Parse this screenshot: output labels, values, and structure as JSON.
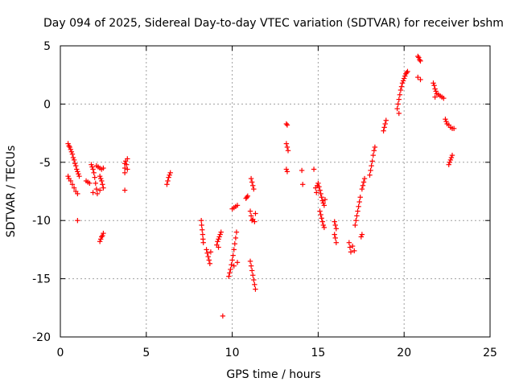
{
  "chart_data": {
    "type": "scatter",
    "title": "Day 094 of 2025, Sidereal Day-to-day VTEC variation (SDTVAR) for receiver bshm",
    "xlabel": "GPS time / hours",
    "ylabel": "SDTVAR / TECUs",
    "xlim": [
      0,
      25
    ],
    "ylim": [
      -20,
      5
    ],
    "xticks": [
      0,
      5,
      10,
      15,
      20,
      25
    ],
    "yticks": [
      -20,
      -15,
      -10,
      -5,
      0,
      5
    ],
    "grid": true,
    "marker": "+",
    "color": "#ff0000",
    "series": [
      {
        "name": "SDTVAR",
        "points": [
          [
            0.45,
            -3.4
          ],
          [
            0.5,
            -3.6
          ],
          [
            0.55,
            -3.7
          ],
          [
            0.6,
            -3.9
          ],
          [
            0.65,
            -4.1
          ],
          [
            0.7,
            -4.3
          ],
          [
            0.75,
            -4.6
          ],
          [
            0.8,
            -4.8
          ],
          [
            0.85,
            -5.1
          ],
          [
            0.9,
            -5.3
          ],
          [
            0.95,
            -5.6
          ],
          [
            1.0,
            -5.8
          ],
          [
            1.05,
            -6.0
          ],
          [
            1.1,
            -6.2
          ],
          [
            0.45,
            -6.2
          ],
          [
            0.5,
            -6.4
          ],
          [
            0.6,
            -6.6
          ],
          [
            0.7,
            -6.9
          ],
          [
            0.8,
            -7.2
          ],
          [
            0.9,
            -7.5
          ],
          [
            1.0,
            -7.7
          ],
          [
            1.0,
            -10.0
          ],
          [
            1.5,
            -6.6
          ],
          [
            1.6,
            -6.7
          ],
          [
            1.7,
            -6.8
          ],
          [
            1.8,
            -5.2
          ],
          [
            1.85,
            -5.4
          ],
          [
            1.9,
            -5.6
          ],
          [
            1.95,
            -5.9
          ],
          [
            2.0,
            -6.3
          ],
          [
            2.05,
            -6.8
          ],
          [
            2.1,
            -7.3
          ],
          [
            2.15,
            -7.7
          ],
          [
            1.9,
            -7.6
          ],
          [
            2.1,
            -5.3
          ],
          [
            2.2,
            -5.4
          ],
          [
            2.3,
            -5.5
          ],
          [
            2.4,
            -5.6
          ],
          [
            2.5,
            -5.5
          ],
          [
            2.3,
            -6.2
          ],
          [
            2.35,
            -6.4
          ],
          [
            2.4,
            -6.6
          ],
          [
            2.45,
            -6.9
          ],
          [
            2.5,
            -7.2
          ],
          [
            2.3,
            -7.4
          ],
          [
            2.3,
            -11.8
          ],
          [
            2.35,
            -11.6
          ],
          [
            2.4,
            -11.4
          ],
          [
            2.45,
            -11.3
          ],
          [
            2.5,
            -11.1
          ],
          [
            3.75,
            -5.1
          ],
          [
            3.75,
            -5.5
          ],
          [
            3.75,
            -5.9
          ],
          [
            3.8,
            -4.9
          ],
          [
            3.85,
            -5.2
          ],
          [
            3.9,
            -4.7
          ],
          [
            3.9,
            -5.6
          ],
          [
            3.75,
            -7.4
          ],
          [
            6.2,
            -6.9
          ],
          [
            6.25,
            -6.6
          ],
          [
            6.3,
            -6.3
          ],
          [
            6.35,
            -6.1
          ],
          [
            6.4,
            -5.9
          ],
          [
            8.2,
            -10.0
          ],
          [
            8.22,
            -10.4
          ],
          [
            8.25,
            -10.8
          ],
          [
            8.28,
            -11.2
          ],
          [
            8.3,
            -11.6
          ],
          [
            8.32,
            -11.9
          ],
          [
            8.5,
            -12.5
          ],
          [
            8.55,
            -12.8
          ],
          [
            8.6,
            -13.1
          ],
          [
            8.65,
            -13.4
          ],
          [
            8.7,
            -13.7
          ],
          [
            8.75,
            -12.7
          ],
          [
            9.1,
            -12.1
          ],
          [
            9.15,
            -11.8
          ],
          [
            9.2,
            -11.6
          ],
          [
            9.25,
            -11.4
          ],
          [
            9.3,
            -11.2
          ],
          [
            9.35,
            -11.0
          ],
          [
            9.2,
            -12.3
          ],
          [
            9.45,
            -18.2
          ],
          [
            9.8,
            -14.8
          ],
          [
            9.85,
            -14.5
          ],
          [
            9.9,
            -14.2
          ],
          [
            9.95,
            -13.8
          ],
          [
            10.0,
            -13.4
          ],
          [
            10.05,
            -13.0
          ],
          [
            10.1,
            -12.5
          ],
          [
            10.15,
            -12.0
          ],
          [
            10.2,
            -11.5
          ],
          [
            10.25,
            -11.0
          ],
          [
            10.3,
            -13.6
          ],
          [
            10.1,
            -13.9
          ],
          [
            10.0,
            -9.0
          ],
          [
            10.1,
            -8.9
          ],
          [
            10.2,
            -8.8
          ],
          [
            10.3,
            -8.7
          ],
          [
            10.8,
            -8.1
          ],
          [
            10.85,
            -8.0
          ],
          [
            10.9,
            -7.9
          ],
          [
            11.05,
            -13.5
          ],
          [
            11.1,
            -13.9
          ],
          [
            11.15,
            -14.3
          ],
          [
            11.2,
            -14.7
          ],
          [
            11.25,
            -15.1
          ],
          [
            11.3,
            -15.5
          ],
          [
            11.35,
            -15.9
          ],
          [
            11.05,
            -9.2
          ],
          [
            11.1,
            -9.6
          ],
          [
            11.15,
            -10.0
          ],
          [
            11.2,
            -9.9
          ],
          [
            11.3,
            -10.1
          ],
          [
            11.35,
            -9.4
          ],
          [
            11.1,
            -6.4
          ],
          [
            11.15,
            -6.7
          ],
          [
            11.2,
            -7.0
          ],
          [
            11.25,
            -7.3
          ],
          [
            13.15,
            -1.7
          ],
          [
            13.2,
            -1.8
          ],
          [
            13.15,
            -3.4
          ],
          [
            13.2,
            -3.7
          ],
          [
            13.25,
            -4.0
          ],
          [
            13.15,
            -5.6
          ],
          [
            13.2,
            -5.8
          ],
          [
            14.05,
            -5.7
          ],
          [
            14.1,
            -6.9
          ],
          [
            14.75,
            -5.6
          ],
          [
            14.85,
            -7.2
          ],
          [
            14.9,
            -7.6
          ],
          [
            14.95,
            -7.0
          ],
          [
            15.0,
            -6.8
          ],
          [
            15.05,
            -7.1
          ],
          [
            15.1,
            -7.4
          ],
          [
            15.15,
            -7.7
          ],
          [
            15.2,
            -8.0
          ],
          [
            15.25,
            -8.3
          ],
          [
            15.3,
            -8.5
          ],
          [
            15.35,
            -8.7
          ],
          [
            15.4,
            -8.2
          ],
          [
            15.1,
            -9.2
          ],
          [
            15.15,
            -9.5
          ],
          [
            15.2,
            -9.8
          ],
          [
            15.25,
            -10.1
          ],
          [
            15.3,
            -10.4
          ],
          [
            15.35,
            -10.6
          ],
          [
            15.95,
            -10.1
          ],
          [
            16.0,
            -10.4
          ],
          [
            16.05,
            -10.7
          ],
          [
            15.95,
            -11.2
          ],
          [
            16.0,
            -11.5
          ],
          [
            16.05,
            -11.9
          ],
          [
            16.8,
            -11.9
          ],
          [
            16.85,
            -12.3
          ],
          [
            16.9,
            -12.7
          ],
          [
            17.0,
            -12.2
          ],
          [
            17.1,
            -12.6
          ],
          [
            17.15,
            -10.4
          ],
          [
            17.2,
            -10.0
          ],
          [
            17.25,
            -9.6
          ],
          [
            17.3,
            -9.2
          ],
          [
            17.35,
            -8.8
          ],
          [
            17.4,
            -8.4
          ],
          [
            17.45,
            -8.0
          ],
          [
            17.5,
            -11.4
          ],
          [
            17.55,
            -11.2
          ],
          [
            17.55,
            -7.3
          ],
          [
            17.6,
            -7.0
          ],
          [
            17.65,
            -6.7
          ],
          [
            17.7,
            -6.4
          ],
          [
            18.0,
            -6.1
          ],
          [
            18.05,
            -5.7
          ],
          [
            18.1,
            -5.3
          ],
          [
            18.15,
            -4.9
          ],
          [
            18.2,
            -4.4
          ],
          [
            18.25,
            -4.0
          ],
          [
            18.3,
            -3.7
          ],
          [
            18.8,
            -2.3
          ],
          [
            18.85,
            -2.0
          ],
          [
            18.9,
            -1.7
          ],
          [
            18.95,
            -1.4
          ],
          [
            19.6,
            -0.4
          ],
          [
            19.65,
            0.0
          ],
          [
            19.7,
            0.4
          ],
          [
            19.75,
            0.8
          ],
          [
            19.8,
            1.2
          ],
          [
            19.85,
            1.5
          ],
          [
            19.9,
            1.8
          ],
          [
            19.95,
            2.0
          ],
          [
            20.0,
            2.2
          ],
          [
            20.05,
            2.4
          ],
          [
            20.1,
            2.6
          ],
          [
            20.15,
            2.7
          ],
          [
            20.2,
            2.8
          ],
          [
            19.7,
            -0.8
          ],
          [
            20.8,
            4.1
          ],
          [
            20.85,
            4.0
          ],
          [
            20.9,
            3.8
          ],
          [
            20.95,
            3.7
          ],
          [
            20.8,
            2.3
          ],
          [
            20.95,
            2.1
          ],
          [
            21.7,
            1.8
          ],
          [
            21.75,
            1.6
          ],
          [
            21.8,
            1.3
          ],
          [
            21.85,
            1.1
          ],
          [
            21.9,
            0.9
          ],
          [
            22.0,
            0.8
          ],
          [
            22.1,
            0.7
          ],
          [
            22.2,
            0.6
          ],
          [
            22.3,
            0.5
          ],
          [
            21.8,
            0.6
          ],
          [
            22.4,
            -1.3
          ],
          [
            22.45,
            -1.5
          ],
          [
            22.5,
            -1.7
          ],
          [
            22.6,
            -1.8
          ],
          [
            22.7,
            -2.0
          ],
          [
            22.8,
            -2.1
          ],
          [
            22.9,
            -2.1
          ],
          [
            22.6,
            -5.2
          ],
          [
            22.65,
            -5.0
          ],
          [
            22.7,
            -4.8
          ],
          [
            22.75,
            -4.6
          ],
          [
            22.8,
            -4.4
          ]
        ]
      }
    ]
  }
}
